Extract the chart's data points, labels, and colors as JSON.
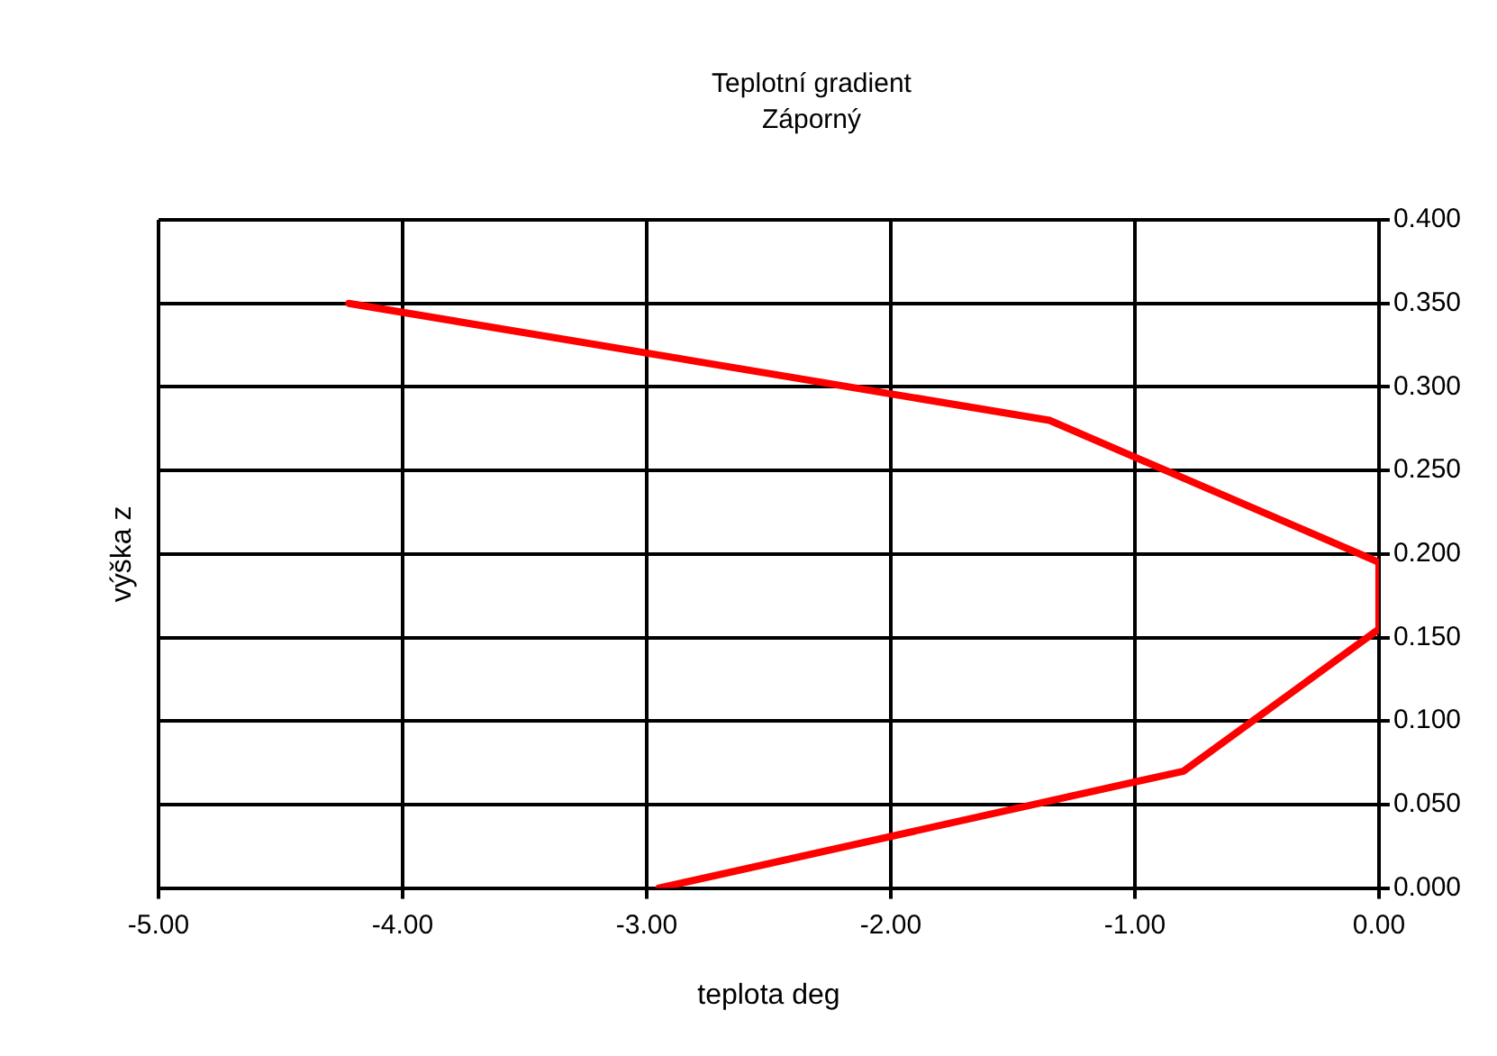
{
  "chart_data": {
    "type": "line",
    "title": "Teplotní gradient",
    "subtitle": "Záporný",
    "xlabel": "teplota deg",
    "ylabel": "výška z",
    "series": [
      {
        "color": "#ff0000",
        "x": [
          -4.22,
          -1.35,
          0,
          0,
          -0.8,
          -2.95
        ],
        "values": [
          0.35,
          0.28,
          0.195,
          0.155,
          0.07,
          0
        ]
      }
    ],
    "xlim": [
      -5,
      0
    ],
    "xticks": [
      {
        "value": -5,
        "label": "-5.00"
      },
      {
        "value": -4,
        "label": "-4.00"
      },
      {
        "value": -3,
        "label": "-3.00"
      },
      {
        "value": -2,
        "label": "-2.00"
      },
      {
        "value": -1,
        "label": "-1.00"
      },
      {
        "value": 0,
        "label": "0.00"
      }
    ],
    "ylim": [
      0,
      0.4
    ],
    "yticks": [
      {
        "value": 0,
        "label": "0.000"
      },
      {
        "value": 0.05,
        "label": "0.050"
      },
      {
        "value": 0.1,
        "label": "0.100"
      },
      {
        "value": 0.15,
        "label": "0.150"
      },
      {
        "value": 0.2,
        "label": "0.200"
      },
      {
        "value": 0.25,
        "label": "0.250"
      },
      {
        "value": 0.3,
        "label": "0.300"
      },
      {
        "value": 0.35,
        "label": "0.350"
      },
      {
        "value": 0.4,
        "label": "0.400"
      }
    ],
    "grid": true,
    "marker": "none",
    "line_style": "solid"
  }
}
